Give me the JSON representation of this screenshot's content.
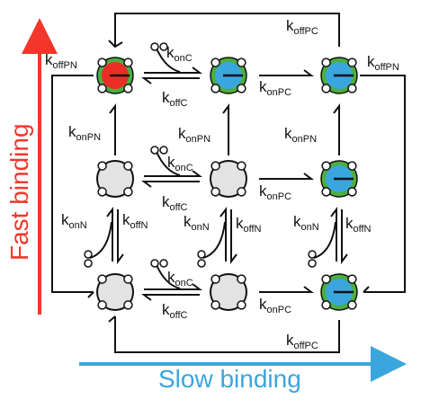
{
  "axes": {
    "vertical_label": "Fast binding",
    "horizontal_label": "Slow binding",
    "vertical_color": "#f2362b",
    "horizontal_color": "#3aa6dd"
  },
  "colors": {
    "empty_fill": "#e3e3e3",
    "C_bound": "#3aa6dd",
    "P_bound": "#4cae3f",
    "N_bound": "#ea2e25",
    "stroke": "#111111"
  },
  "states": [
    {
      "name": "state-PN",
      "row": 0,
      "col": 0,
      "fill": "N_bound",
      "ring": "P_bound",
      "bar": true
    },
    {
      "name": "state-PC-top",
      "row": 0,
      "col": 1,
      "fill": "C_bound",
      "ring": "P_bound",
      "bar": true
    },
    {
      "name": "state-PC-right-top",
      "row": 0,
      "col": 2,
      "fill": "C_bound",
      "ring": "P_bound",
      "bar": true
    },
    {
      "name": "state-empty-mid-left",
      "row": 1,
      "col": 0,
      "fill": "empty_fill",
      "ring": null,
      "bar": false
    },
    {
      "name": "state-empty-mid-center",
      "row": 1,
      "col": 1,
      "fill": "empty_fill",
      "ring": null,
      "bar": false
    },
    {
      "name": "state-PC-right-mid",
      "row": 1,
      "col": 2,
      "fill": "C_bound",
      "ring": "P_bound",
      "bar": true
    },
    {
      "name": "state-empty-bottom-left",
      "row": 2,
      "col": 0,
      "fill": "empty_fill",
      "ring": null,
      "bar": false
    },
    {
      "name": "state-empty-bottom-center",
      "row": 2,
      "col": 1,
      "fill": "empty_fill",
      "ring": null,
      "bar": false
    },
    {
      "name": "state-PC-right-bottom",
      "row": 2,
      "col": 2,
      "fill": "C_bound",
      "ring": "P_bound",
      "bar": true
    }
  ],
  "rate_labels": [
    {
      "id": "koffPN-left",
      "k": "k",
      "sub": "offPN"
    },
    {
      "id": "koffPN-right",
      "k": "k",
      "sub": "offPN"
    },
    {
      "id": "koffPC-top",
      "k": "k",
      "sub": "offPC"
    },
    {
      "id": "koffPC-bottom",
      "k": "k",
      "sub": "offPC"
    },
    {
      "id": "konC-row0",
      "k": "k",
      "sub": "onC"
    },
    {
      "id": "koffC-row0",
      "k": "k",
      "sub": "offC"
    },
    {
      "id": "konPC-row0",
      "k": "k",
      "sub": "onPC"
    },
    {
      "id": "konPN-col0",
      "k": "k",
      "sub": "onPN"
    },
    {
      "id": "konPN-col1",
      "k": "k",
      "sub": "onPN"
    },
    {
      "id": "konPN-col2",
      "k": "k",
      "sub": "onPN"
    },
    {
      "id": "konC-row1",
      "k": "k",
      "sub": "onC"
    },
    {
      "id": "koffC-row1",
      "k": "k",
      "sub": "offC"
    },
    {
      "id": "konPC-row1",
      "k": "k",
      "sub": "onPC"
    },
    {
      "id": "konN-col0",
      "k": "k",
      "sub": "onN"
    },
    {
      "id": "koffN-col0",
      "k": "k",
      "sub": "offN"
    },
    {
      "id": "konN-col1",
      "k": "k",
      "sub": "onN"
    },
    {
      "id": "koffN-col1",
      "k": "k",
      "sub": "offN"
    },
    {
      "id": "konN-col2",
      "k": "k",
      "sub": "onN"
    },
    {
      "id": "koffN-col2",
      "k": "k",
      "sub": "offN"
    },
    {
      "id": "konC-row2",
      "k": "k",
      "sub": "onC"
    },
    {
      "id": "koffC-row2",
      "k": "k",
      "sub": "offC"
    },
    {
      "id": "konPC-row2",
      "k": "k",
      "sub": "onPC"
    }
  ]
}
